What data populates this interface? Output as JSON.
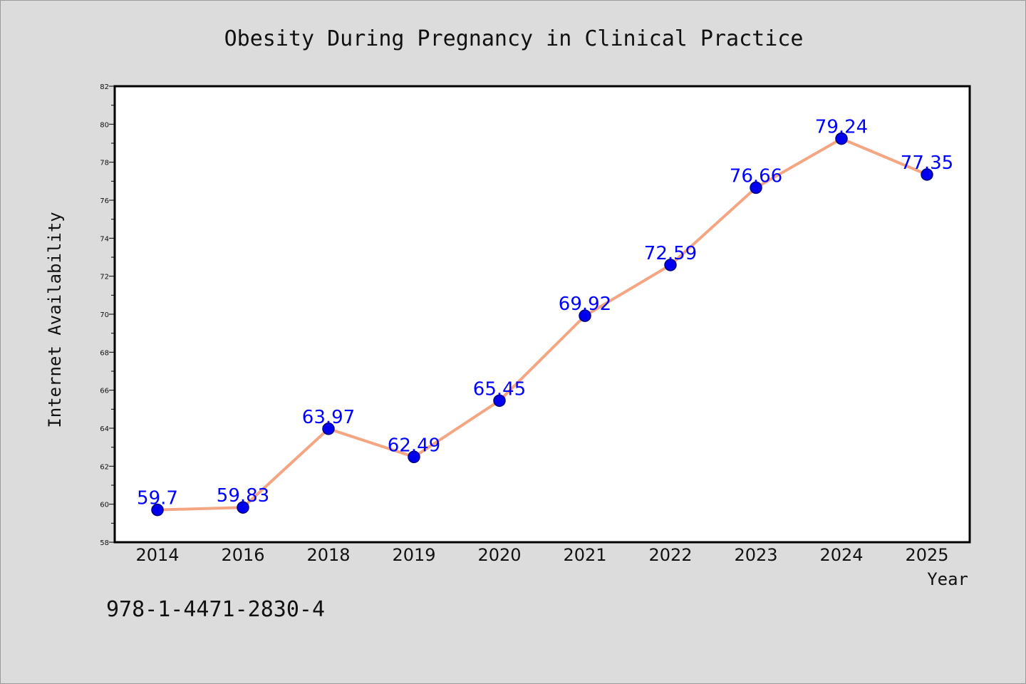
{
  "chart_data": {
    "type": "line",
    "title": "Obesity During Pregnancy in Clinical Practice",
    "xlabel": "Year",
    "ylabel": "Internet Availability",
    "categories": [
      "2014",
      "2016",
      "2018",
      "2019",
      "2020",
      "2021",
      "2022",
      "2023",
      "2024",
      "2025"
    ],
    "values": [
      59.7,
      59.83,
      63.97,
      62.49,
      65.45,
      69.92,
      72.59,
      76.66,
      79.24,
      77.35
    ],
    "data_labels": [
      "59.7",
      "59.83",
      "63.97",
      "62.49",
      "65.45",
      "69.92",
      "72.59",
      "76.66",
      "79.24",
      "77.35"
    ],
    "ylim": [
      58,
      82
    ],
    "yticks": [
      58,
      60,
      62,
      64,
      66,
      68,
      70,
      72,
      74,
      76,
      78,
      80,
      82
    ],
    "ytick_labels": [
      "58",
      "60",
      "62",
      "64",
      "66",
      "68",
      "70",
      "72",
      "74",
      "76",
      "78",
      "80",
      "82"
    ],
    "grid": false,
    "legend": "none",
    "colors": {
      "line": "#f4a582",
      "marker": "#0000ee",
      "marker_edge": "#000080",
      "data_label": "#0000ff",
      "background": "#dcdcdc",
      "plot_background": "#ffffff"
    }
  },
  "annotation": "978-1-4471-2830-4"
}
